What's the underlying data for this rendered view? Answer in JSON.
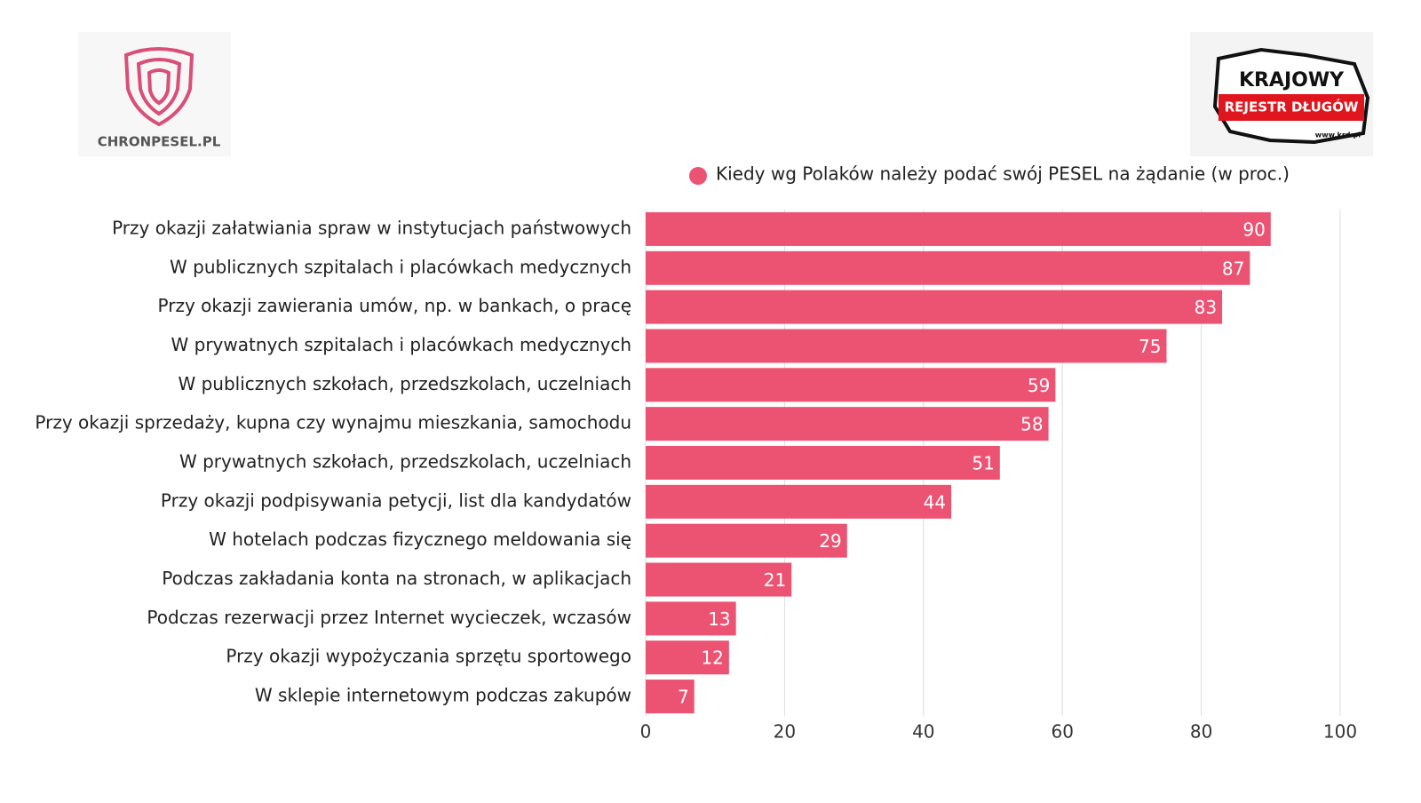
{
  "chart_data": {
    "type": "bar",
    "orientation": "horizontal",
    "legend": "Kiedy wg Polaków należy podać swój PESEL na żądanie (w proc.)",
    "legend_position": "top-right",
    "categories": [
      "Przy okazji załatwiania spraw w instytucjach państwowych",
      "W publicznych szpitalach i placówkach medycznych",
      "Przy okazji zawierania umów, np. w bankach, o pracę",
      "W prywatnych szpitalach i placówkach medycznych",
      "W publicznych szkołach, przedszkolach, uczelniach",
      "Przy okazji sprzedaży, kupna czy wynajmu mieszkania, samochodu",
      "W prywatnych szkołach, przedszkolach, uczelniach",
      "Przy okazji podpisywania petycji, list dla kandydatów",
      "W hotelach podczas fizycznego meldowania się",
      "Podczas zakładania konta na stronach, w aplikacjach",
      "Podczas rezerwacji przez Internet wycieczek, wczasów",
      "Przy okazji wypożyczania sprzętu sportowego",
      "W sklepie internetowym podczas zakupów"
    ],
    "values": [
      90,
      87,
      83,
      75,
      59,
      58,
      51,
      44,
      29,
      21,
      13,
      12,
      7
    ],
    "color": "#ec5373",
    "xlim": [
      0,
      100
    ],
    "xticks": [
      0,
      20,
      40,
      60,
      80,
      100
    ],
    "grid": true
  },
  "logos": {
    "left": "CHRONPESEL.PL",
    "right": [
      "KRAJOWY",
      "REJESTR DŁUGÓW",
      "www.krd.pl"
    ]
  }
}
